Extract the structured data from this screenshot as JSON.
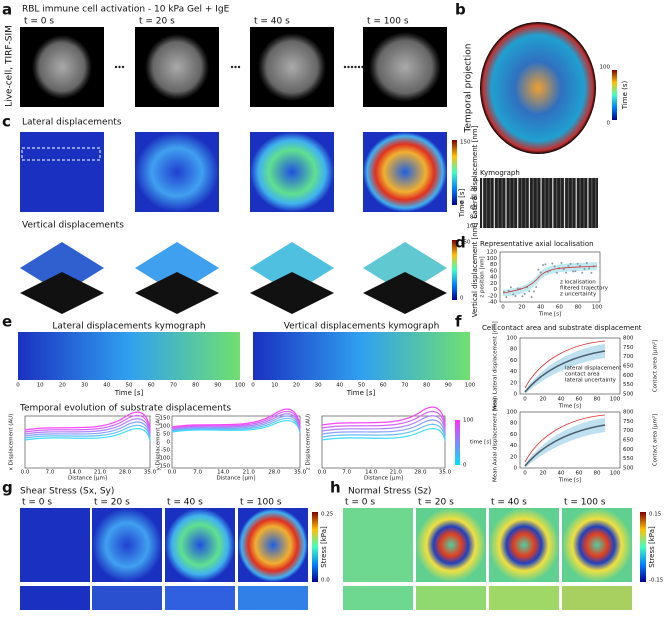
{
  "panel_a": {
    "label": "a",
    "title": "RBL immune cell activation - 10 kPa Gel + IgE",
    "side_label": "Live-cell, TIRF-SIM",
    "times": [
      "t = 0 s",
      "t = 20 s",
      "t = 40 s",
      "t = 100 s"
    ]
  },
  "panel_b": {
    "label": "b",
    "side_label": "Temporal projection",
    "colorbar": {
      "label": "Time (s)",
      "ticks": [
        100,
        0
      ]
    },
    "kymograph": {
      "title": "Kymograph",
      "axis_label": "Time [s]",
      "ticks": [
        0,
        20,
        40,
        60,
        80,
        100
      ]
    }
  },
  "panel_c": {
    "label": "c",
    "lateral_title": "Lateral displacements",
    "lateral_colorbar": {
      "label": "Lateral displacement [nm]",
      "ticks": [
        150,
        0
      ]
    },
    "vertical_title": "Vertical displacements",
    "vertical_colorbar": {
      "label": "Vertical displacement [nm]",
      "ticks": [
        150,
        0
      ]
    }
  },
  "panel_d": {
    "label": "d",
    "title": "Representative axial localisation",
    "y_label": "z position [nm]",
    "x_label": "Time [s]",
    "yticks": [
      120,
      100,
      80,
      60,
      40,
      20,
      0,
      -20,
      -40
    ],
    "xticks": [
      0,
      20,
      40,
      60,
      80,
      100
    ],
    "legend": [
      "z localisation",
      "filtered trajectory",
      "z uncertainty"
    ]
  },
  "panel_e": {
    "label": "e",
    "kymo_titles": [
      "Lateral displacements kymograph",
      "Vertical displacements kymograph"
    ],
    "kymo_xticks": [
      0,
      10,
      20,
      30,
      40,
      50,
      60,
      70,
      80,
      90,
      100
    ],
    "kymo_x_label": "Time [s]",
    "evolution_title": "Temporal evolution of substrate displacements",
    "plots": [
      {
        "y_label": "x Displacement (AU)",
        "x_label": "Distance [μm]",
        "xticks": [
          "0.0",
          "7.0",
          "14.0",
          "21.0",
          "28.0",
          "35.0"
        ]
      },
      {
        "y_label": "y Displacement (AU)",
        "x_label": "Distance [μm]",
        "xticks": [
          "0.0",
          "7.0",
          "14.0",
          "21.0",
          "28.0",
          "35.0"
        ],
        "yticks": [
          150,
          100,
          50,
          0,
          -50,
          -100,
          -150
        ]
      },
      {
        "y_label": "z Displacement (AU)",
        "x_label": "Distance [μm]",
        "xticks": [
          "0.0",
          "7.0",
          "14.0",
          "21.0",
          "28.0",
          "35.0"
        ]
      }
    ],
    "colorbar": {
      "label": "time [s]",
      "ticks": [
        100,
        0
      ]
    }
  },
  "panel_f": {
    "label": "f",
    "title": "Cell contact area and substrate displacement",
    "plots": [
      {
        "y_label": "Mean Lateral displacement [nm]",
        "y2_label": "Contact area [μm²]",
        "x_label": "Time [s]",
        "yticks": [
          100,
          80,
          60,
          40,
          20,
          0
        ],
        "y2ticks": [
          800,
          750,
          700,
          650,
          600,
          550,
          500
        ],
        "xticks": [
          0,
          20,
          40,
          60,
          80,
          100
        ],
        "legend": [
          "lateral displacement",
          "contact area",
          "lateral uncertainty"
        ]
      },
      {
        "y_label": "Mean Axial displacement [nm]",
        "y2_label": "Contact area [μm²]",
        "x_label": "Time [s]",
        "yticks": [
          100,
          80,
          60,
          40,
          20,
          0
        ],
        "y2ticks": [
          800,
          750,
          700,
          650,
          600,
          550,
          500
        ],
        "xticks": [
          0,
          20,
          40,
          60,
          80,
          100
        ]
      }
    ]
  },
  "panel_g": {
    "label": "g",
    "title": "Shear Stress (Sx, Sy)",
    "times": [
      "t = 0 s",
      "t = 20 s",
      "t = 40 s",
      "t = 100 s"
    ],
    "colorbar": {
      "label": "Stress [kPa]",
      "ticks": [
        "0.25",
        "0.0"
      ]
    }
  },
  "panel_h": {
    "label": "h",
    "title": "Normal Stress (Sz)",
    "times": [
      "t = 0 s",
      "t = 20 s",
      "t = 40 s",
      "t = 100 s"
    ],
    "colorbar": {
      "label": "Stress [kPa]",
      "ticks": [
        "0.15",
        "-0.15"
      ]
    }
  }
}
